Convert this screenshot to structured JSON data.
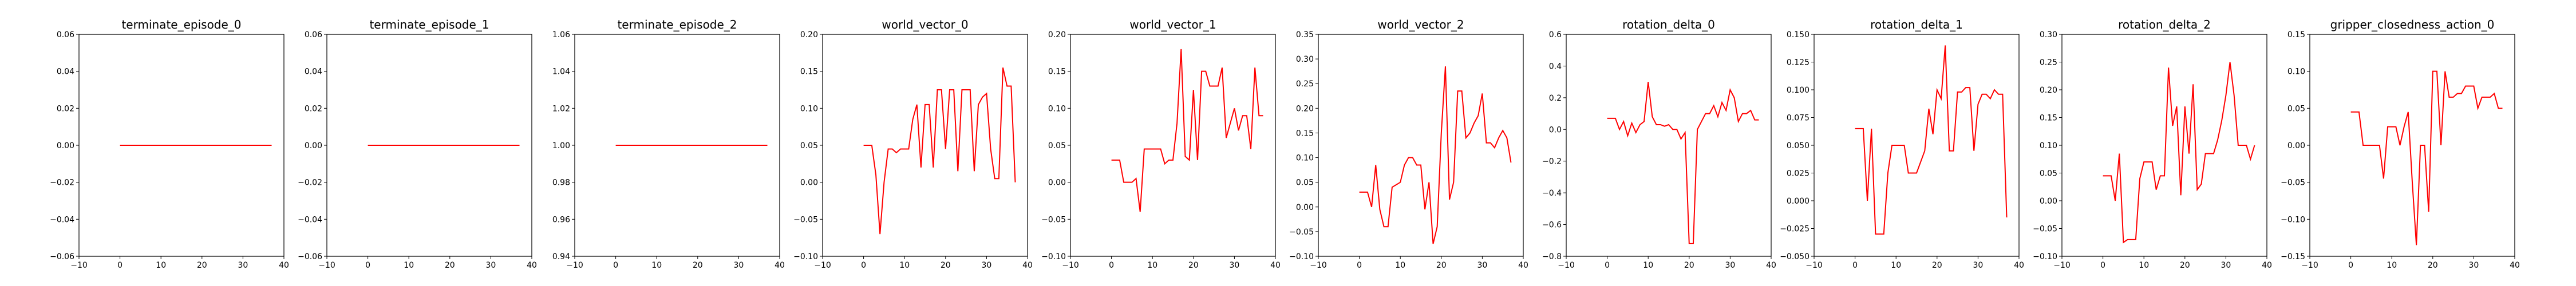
{
  "figure": {
    "line_color": "#ff0000",
    "axes_color": "#000000",
    "background": "#ffffff"
  },
  "chart_data": [
    {
      "type": "line",
      "title": "terminate_episode_0",
      "xlim": [
        -10,
        40
      ],
      "ylim": [
        -0.06,
        0.06
      ],
      "x_ticks": [
        "−10",
        "0",
        "10",
        "20",
        "30",
        "40"
      ],
      "y_ticks": [
        "−0.06",
        "−0.04",
        "−0.02",
        "0.00",
        "0.02",
        "0.04",
        "0.06"
      ],
      "y_tick_values": [
        -0.06,
        -0.04,
        -0.02,
        0.0,
        0.02,
        0.04,
        0.06
      ],
      "series": [
        {
          "x": [
            0,
            37
          ],
          "y": [
            0.0,
            0.0
          ]
        }
      ]
    },
    {
      "type": "line",
      "title": "terminate_episode_1",
      "xlim": [
        -10,
        40
      ],
      "ylim": [
        -0.06,
        0.06
      ],
      "x_ticks": [
        "−10",
        "0",
        "10",
        "20",
        "30",
        "40"
      ],
      "y_ticks": [
        "−0.06",
        "−0.04",
        "−0.02",
        "0.00",
        "0.02",
        "0.04",
        "0.06"
      ],
      "y_tick_values": [
        -0.06,
        -0.04,
        -0.02,
        0.0,
        0.02,
        0.04,
        0.06
      ],
      "series": [
        {
          "x": [
            0,
            37
          ],
          "y": [
            0.0,
            0.0
          ]
        }
      ]
    },
    {
      "type": "line",
      "title": "terminate_episode_2",
      "xlim": [
        -10,
        40
      ],
      "ylim": [
        0.94,
        1.06
      ],
      "x_ticks": [
        "−10",
        "0",
        "10",
        "20",
        "30",
        "40"
      ],
      "y_ticks": [
        "0.94",
        "0.96",
        "0.98",
        "1.00",
        "1.02",
        "1.04",
        "1.06"
      ],
      "y_tick_values": [
        0.94,
        0.96,
        0.98,
        1.0,
        1.02,
        1.04,
        1.06
      ],
      "series": [
        {
          "x": [
            0,
            37
          ],
          "y": [
            1.0,
            1.0
          ]
        }
      ]
    },
    {
      "type": "line",
      "title": "world_vector_0",
      "xlim": [
        -10,
        40
      ],
      "ylim": [
        -0.1,
        0.2
      ],
      "x_ticks": [
        "−10",
        "0",
        "10",
        "20",
        "30",
        "40"
      ],
      "y_ticks": [
        "−0.10",
        "−0.05",
        "0.00",
        "0.05",
        "0.10",
        "0.15",
        "0.20"
      ],
      "y_tick_values": [
        -0.1,
        -0.05,
        0.0,
        0.05,
        0.1,
        0.15,
        0.2
      ],
      "series": [
        {
          "x": [
            0,
            1,
            2,
            3,
            4,
            5,
            6,
            7,
            8,
            9,
            10,
            11,
            12,
            13,
            14,
            15,
            16,
            17,
            18,
            19,
            20,
            21,
            22,
            23,
            24,
            25,
            26,
            27,
            28,
            29,
            30,
            31,
            32,
            33,
            34,
            35,
            36,
            37
          ],
          "y": [
            0.05,
            0.05,
            0.05,
            0.01,
            -0.07,
            0.0,
            0.045,
            0.045,
            0.04,
            0.045,
            0.045,
            0.045,
            0.085,
            0.105,
            0.02,
            0.105,
            0.105,
            0.02,
            0.125,
            0.125,
            0.045,
            0.125,
            0.125,
            0.015,
            0.125,
            0.125,
            0.125,
            0.015,
            0.105,
            0.115,
            0.12,
            0.045,
            0.005,
            0.005,
            0.155,
            0.13,
            0.13,
            0.0
          ]
        }
      ]
    },
    {
      "type": "line",
      "title": "world_vector_1",
      "xlim": [
        -10,
        40
      ],
      "ylim": [
        -0.1,
        0.2
      ],
      "x_ticks": [
        "−10",
        "0",
        "10",
        "20",
        "30",
        "40"
      ],
      "y_ticks": [
        "−0.10",
        "−0.05",
        "0.00",
        "0.05",
        "0.10",
        "0.15",
        "0.20"
      ],
      "y_tick_values": [
        -0.1,
        -0.05,
        0.0,
        0.05,
        0.1,
        0.15,
        0.2
      ],
      "series": [
        {
          "x": [
            0,
            1,
            2,
            3,
            4,
            5,
            6,
            7,
            8,
            9,
            10,
            11,
            12,
            13,
            14,
            15,
            16,
            17,
            18,
            19,
            20,
            21,
            22,
            23,
            24,
            25,
            26,
            27,
            28,
            29,
            30,
            31,
            32,
            33,
            34,
            35,
            36,
            37
          ],
          "y": [
            0.03,
            0.03,
            0.03,
            0.0,
            0.0,
            0.0,
            0.005,
            -0.04,
            0.045,
            0.045,
            0.045,
            0.045,
            0.045,
            0.025,
            0.03,
            0.03,
            0.08,
            0.18,
            0.035,
            0.03,
            0.125,
            0.03,
            0.15,
            0.15,
            0.13,
            0.13,
            0.13,
            0.155,
            0.06,
            0.08,
            0.1,
            0.07,
            0.09,
            0.09,
            0.045,
            0.155,
            0.09,
            0.09
          ]
        }
      ]
    },
    {
      "type": "line",
      "title": "world_vector_2",
      "xlim": [
        -10,
        40
      ],
      "ylim": [
        -0.1,
        0.35
      ],
      "x_ticks": [
        "−10",
        "0",
        "10",
        "20",
        "30",
        "40"
      ],
      "y_ticks": [
        "−0.10",
        "−0.05",
        "0.00",
        "0.05",
        "0.10",
        "0.15",
        "0.20",
        "0.25",
        "0.30",
        "0.35"
      ],
      "y_tick_values": [
        -0.1,
        -0.05,
        0.0,
        0.05,
        0.1,
        0.15,
        0.2,
        0.25,
        0.3,
        0.35
      ],
      "series": [
        {
          "x": [
            0,
            1,
            2,
            3,
            4,
            5,
            6,
            7,
            8,
            9,
            10,
            11,
            12,
            13,
            14,
            15,
            16,
            17,
            18,
            19,
            20,
            21,
            22,
            23,
            24,
            25,
            26,
            27,
            28,
            29,
            30,
            31,
            32,
            33,
            34,
            35,
            36,
            37
          ],
          "y": [
            0.03,
            0.03,
            0.03,
            0.0,
            0.085,
            -0.005,
            -0.04,
            -0.04,
            0.04,
            0.045,
            0.05,
            0.085,
            0.1,
            0.1,
            0.085,
            0.085,
            -0.005,
            0.05,
            -0.075,
            -0.04,
            0.15,
            0.285,
            0.015,
            0.05,
            0.235,
            0.235,
            0.14,
            0.15,
            0.17,
            0.185,
            0.23,
            0.13,
            0.13,
            0.12,
            0.14,
            0.155,
            0.14,
            0.09
          ]
        }
      ]
    },
    {
      "type": "line",
      "title": "rotation_delta_0",
      "xlim": [
        -10,
        40
      ],
      "ylim": [
        -0.8,
        0.6
      ],
      "x_ticks": [
        "−10",
        "0",
        "10",
        "20",
        "30",
        "40"
      ],
      "y_ticks": [
        "−0.8",
        "−0.6",
        "−0.4",
        "−0.2",
        "0.0",
        "0.2",
        "0.4",
        "0.6"
      ],
      "y_tick_values": [
        -0.8,
        -0.6,
        -0.4,
        -0.2,
        0.0,
        0.2,
        0.4,
        0.6
      ],
      "series": [
        {
          "x": [
            0,
            1,
            2,
            3,
            4,
            5,
            6,
            7,
            8,
            9,
            10,
            11,
            12,
            13,
            14,
            15,
            16,
            17,
            18,
            19,
            20,
            21,
            22,
            23,
            24,
            25,
            26,
            27,
            28,
            29,
            30,
            31,
            32,
            33,
            34,
            35,
            36,
            37
          ],
          "y": [
            0.07,
            0.07,
            0.07,
            0.0,
            0.05,
            -0.04,
            0.04,
            -0.02,
            0.03,
            0.05,
            0.3,
            0.08,
            0.03,
            0.03,
            0.02,
            0.03,
            0.0,
            0.0,
            -0.06,
            -0.02,
            -0.72,
            -0.72,
            0.0,
            0.05,
            0.1,
            0.1,
            0.15,
            0.08,
            0.17,
            0.12,
            0.25,
            0.2,
            0.05,
            0.1,
            0.1,
            0.12,
            0.06,
            0.06
          ]
        }
      ]
    },
    {
      "type": "line",
      "title": "rotation_delta_1",
      "xlim": [
        -10,
        40
      ],
      "ylim": [
        -0.05,
        0.15
      ],
      "x_ticks": [
        "−10",
        "0",
        "10",
        "20",
        "30",
        "40"
      ],
      "y_ticks": [
        "−0.050",
        "−0.025",
        "0.000",
        "0.025",
        "0.050",
        "0.075",
        "0.100",
        "0.125",
        "0.150"
      ],
      "y_tick_values": [
        -0.05,
        -0.025,
        0.0,
        0.025,
        0.05,
        0.075,
        0.1,
        0.125,
        0.15
      ],
      "series": [
        {
          "x": [
            0,
            1,
            2,
            3,
            4,
            5,
            6,
            7,
            8,
            9,
            10,
            11,
            12,
            13,
            14,
            15,
            16,
            17,
            18,
            19,
            20,
            21,
            22,
            23,
            24,
            25,
            26,
            27,
            28,
            29,
            30,
            31,
            32,
            33,
            34,
            35,
            36,
            37
          ],
          "y": [
            0.065,
            0.065,
            0.065,
            0.0,
            0.065,
            -0.03,
            -0.03,
            -0.03,
            0.025,
            0.05,
            0.05,
            0.05,
            0.05,
            0.025,
            0.025,
            0.025,
            0.035,
            0.045,
            0.083,
            0.06,
            0.1,
            0.092,
            0.14,
            0.045,
            0.045,
            0.098,
            0.098,
            0.102,
            0.102,
            0.045,
            0.087,
            0.096,
            0.096,
            0.092,
            0.1,
            0.096,
            0.096,
            -0.015
          ]
        }
      ]
    },
    {
      "type": "line",
      "title": "rotation_delta_2",
      "xlim": [
        -10,
        40
      ],
      "ylim": [
        -0.1,
        0.3
      ],
      "x_ticks": [
        "−10",
        "0",
        "10",
        "20",
        "30",
        "40"
      ],
      "y_ticks": [
        "−0.10",
        "−0.05",
        "0.00",
        "0.05",
        "0.10",
        "0.15",
        "0.20",
        "0.25",
        "0.30"
      ],
      "y_tick_values": [
        -0.1,
        -0.05,
        0.0,
        0.05,
        0.1,
        0.15,
        0.2,
        0.25,
        0.3
      ],
      "series": [
        {
          "x": [
            0,
            1,
            2,
            3,
            4,
            5,
            6,
            7,
            8,
            9,
            10,
            11,
            12,
            13,
            14,
            15,
            16,
            17,
            18,
            19,
            20,
            21,
            22,
            23,
            24,
            25,
            26,
            27,
            28,
            29,
            30,
            31,
            32,
            33,
            34,
            35,
            36,
            37
          ],
          "y": [
            0.045,
            0.045,
            0.045,
            0.0,
            0.085,
            -0.075,
            -0.07,
            -0.07,
            -0.07,
            0.04,
            0.07,
            0.07,
            0.07,
            0.02,
            0.045,
            0.045,
            0.24,
            0.135,
            0.17,
            0.01,
            0.17,
            0.085,
            0.21,
            0.02,
            0.03,
            0.085,
            0.085,
            0.085,
            0.11,
            0.145,
            0.19,
            0.25,
            0.19,
            0.1,
            0.1,
            0.1,
            0.075,
            0.1
          ]
        }
      ]
    },
    {
      "type": "line",
      "title": "gripper_closedness_action_0",
      "xlim": [
        -10,
        40
      ],
      "ylim": [
        -0.15,
        0.15
      ],
      "x_ticks": [
        "−10",
        "0",
        "10",
        "20",
        "30",
        "40"
      ],
      "y_ticks": [
        "−0.15",
        "−0.10",
        "−0.05",
        "0.00",
        "0.05",
        "0.10",
        "0.15"
      ],
      "y_tick_values": [
        -0.15,
        -0.1,
        -0.05,
        0.0,
        0.05,
        0.1,
        0.15
      ],
      "series": [
        {
          "x": [
            0,
            1,
            2,
            3,
            4,
            5,
            6,
            7,
            8,
            9,
            10,
            11,
            12,
            13,
            14,
            15,
            16,
            17,
            18,
            19,
            20,
            21,
            22,
            23,
            24,
            25,
            26,
            27,
            28,
            29,
            30,
            31,
            32,
            33,
            34,
            35,
            36,
            37
          ],
          "y": [
            0.045,
            0.045,
            0.045,
            0.0,
            0.0,
            0.0,
            0.0,
            0.0,
            -0.045,
            0.025,
            0.025,
            0.025,
            0.0,
            0.025,
            0.045,
            -0.05,
            -0.135,
            0.0,
            0.0,
            -0.09,
            0.1,
            0.1,
            0.0,
            0.1,
            0.065,
            0.065,
            0.07,
            0.07,
            0.08,
            0.08,
            0.08,
            0.05,
            0.065,
            0.065,
            0.065,
            0.07,
            0.05,
            0.05
          ]
        }
      ]
    }
  ]
}
